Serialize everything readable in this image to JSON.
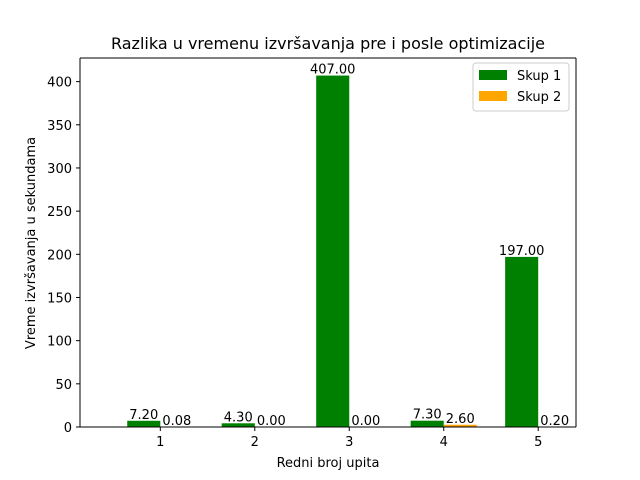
{
  "chart_data": {
    "type": "bar",
    "title": "Razlika u vremenu izvršavanja pre i posle optimizacije",
    "xlabel": "Redni broj upita",
    "ylabel": "Vreme izvršavanja u sekundama",
    "categories": [
      "1",
      "2",
      "3",
      "4",
      "5"
    ],
    "series": [
      {
        "name": "Skup 1",
        "color": "#008000",
        "values": [
          7.2,
          4.3,
          407.0,
          7.3,
          197.0
        ],
        "labels": [
          "7.20",
          "4.30",
          "407.00",
          "7.30",
          "197.00"
        ]
      },
      {
        "name": "Skup 2",
        "color": "#ffa500",
        "values": [
          0.08,
          0.0,
          0.0,
          2.6,
          0.2
        ],
        "labels": [
          "0.08",
          "0.00",
          "0.00",
          "2.60",
          "0.20"
        ]
      }
    ],
    "ylim": [
      0,
      427.35
    ],
    "yticks": [
      0,
      50,
      100,
      150,
      200,
      250,
      300,
      350,
      400
    ],
    "grid": false,
    "legend_position": "top-right"
  }
}
